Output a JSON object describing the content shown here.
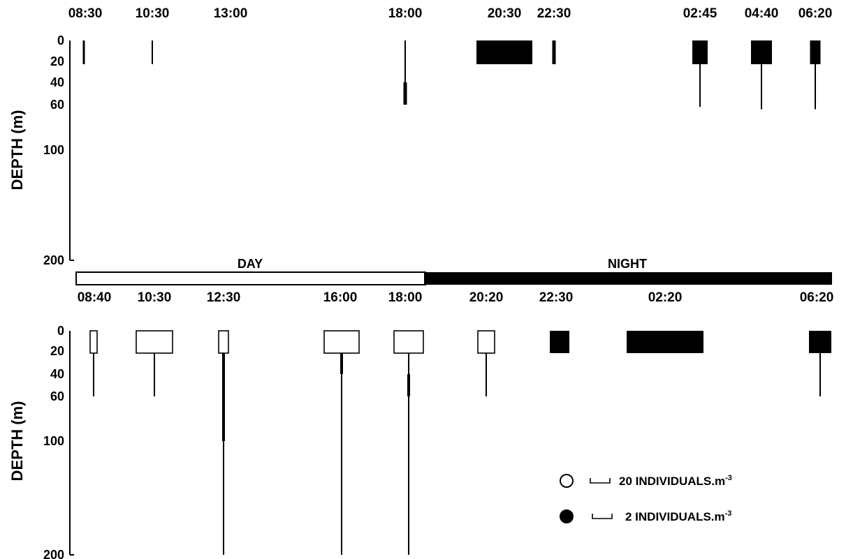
{
  "chart_data": {
    "type": "kite diagram",
    "ylabel": "DEPTH (m)",
    "y_ticks": [
      "0",
      "20",
      "40",
      "60",
      "100",
      "200"
    ],
    "panels": [
      {
        "id": "upper",
        "profiles": [
          {
            "time": "08:30",
            "segments": [
              {
                "from": 0,
                "to": 20,
                "width": 3,
                "fill": "#000000"
              }
            ]
          },
          {
            "time": "10:30",
            "segments": [
              {
                "from": 0,
                "to": 20,
                "width": 2,
                "fill": "#000000"
              }
            ]
          },
          {
            "time": "13:00",
            "segments": []
          },
          {
            "time": "18:00",
            "segments": [
              {
                "from": 0,
                "to": 40,
                "width": 2,
                "fill": "#000000"
              },
              {
                "from": 40,
                "to": 60,
                "width": 5,
                "fill": "#000000"
              }
            ]
          },
          {
            "time": "20:30",
            "segments": [
              {
                "from": 0,
                "to": 20,
                "width": 80,
                "fill": "#000000"
              }
            ]
          },
          {
            "time": "22:30",
            "segments": [
              {
                "from": 0,
                "to": 20,
                "width": 5,
                "fill": "#000000"
              }
            ]
          },
          {
            "time": "02:45",
            "segments": [
              {
                "from": 0,
                "to": 20,
                "width": 22,
                "fill": "#000000"
              },
              {
                "from": 20,
                "to": 62,
                "width": 2,
                "fill": "#000000"
              }
            ]
          },
          {
            "time": "04:40",
            "segments": [
              {
                "from": 0,
                "to": 20,
                "width": 30,
                "fill": "#000000"
              },
              {
                "from": 20,
                "to": 64,
                "width": 2,
                "fill": "#000000"
              }
            ]
          },
          {
            "time": "06:20",
            "segments": [
              {
                "from": 0,
                "to": 20,
                "width": 15,
                "fill": "#000000"
              },
              {
                "from": 20,
                "to": 64,
                "width": 2,
                "fill": "#000000"
              }
            ]
          }
        ]
      },
      {
        "id": "lower",
        "profiles": [
          {
            "time": "08:40",
            "segments": [
              {
                "from": 0,
                "to": 20,
                "width": 10,
                "fill": "#ffffff"
              },
              {
                "from": 20,
                "to": 60,
                "width": 2,
                "fill": "#000000"
              }
            ]
          },
          {
            "time": "10:30",
            "segments": [
              {
                "from": 0,
                "to": 20,
                "width": 52,
                "fill": "#ffffff"
              },
              {
                "from": 20,
                "to": 60,
                "width": 2,
                "fill": "#000000"
              }
            ]
          },
          {
            "time": "12:30",
            "segments": [
              {
                "from": 0,
                "to": 20,
                "width": 14,
                "fill": "#ffffff"
              },
              {
                "from": 20,
                "to": 100,
                "width": 4,
                "fill": "#000000"
              },
              {
                "from": 100,
                "to": 200,
                "width": 2,
                "fill": "#000000"
              }
            ]
          },
          {
            "time": "16:00",
            "segments": [
              {
                "from": 0,
                "to": 20,
                "width": 50,
                "fill": "#ffffff"
              },
              {
                "from": 20,
                "to": 40,
                "width": 4,
                "fill": "#000000"
              },
              {
                "from": 40,
                "to": 200,
                "width": 2,
                "fill": "#000000"
              }
            ]
          },
          {
            "time": "18:00",
            "segments": [
              {
                "from": 0,
                "to": 20,
                "width": 42,
                "fill": "#ffffff"
              },
              {
                "from": 20,
                "to": 40,
                "width": 2,
                "fill": "#000000"
              },
              {
                "from": 40,
                "to": 60,
                "width": 4,
                "fill": "#000000"
              },
              {
                "from": 60,
                "to": 200,
                "width": 2,
                "fill": "#000000"
              }
            ]
          },
          {
            "time": "20:20",
            "segments": [
              {
                "from": 0,
                "to": 20,
                "width": 24,
                "fill": "#ffffff"
              },
              {
                "from": 20,
                "to": 60,
                "width": 2,
                "fill": "#000000"
              }
            ]
          },
          {
            "time": "22:30",
            "segments": [
              {
                "from": 0,
                "to": 20,
                "width": 28,
                "fill": "#000000"
              }
            ]
          },
          {
            "time": "02:20",
            "segments": [
              {
                "from": 0,
                "to": 20,
                "width": 110,
                "fill": "#000000"
              }
            ]
          },
          {
            "time": "06:20",
            "segments": [
              {
                "from": 0,
                "to": 20,
                "width": 32,
                "fill": "#000000"
              },
              {
                "from": 20,
                "to": 60,
                "width": 2,
                "fill": "#000000"
              }
            ]
          }
        ]
      }
    ],
    "day_night": {
      "day_label": "DAY",
      "night_label": "NIGHT",
      "day_color": "#ffffff",
      "night_color": "#000000"
    },
    "legend": [
      {
        "symbol": "open-circle",
        "label": "20 INDIVIDUALS.m",
        "superscript": "-3",
        "fill": "#ffffff"
      },
      {
        "symbol": "filled-circle",
        "label": "2 INDIVIDUALS.m",
        "superscript": "-3",
        "fill": "#000000"
      }
    ]
  }
}
